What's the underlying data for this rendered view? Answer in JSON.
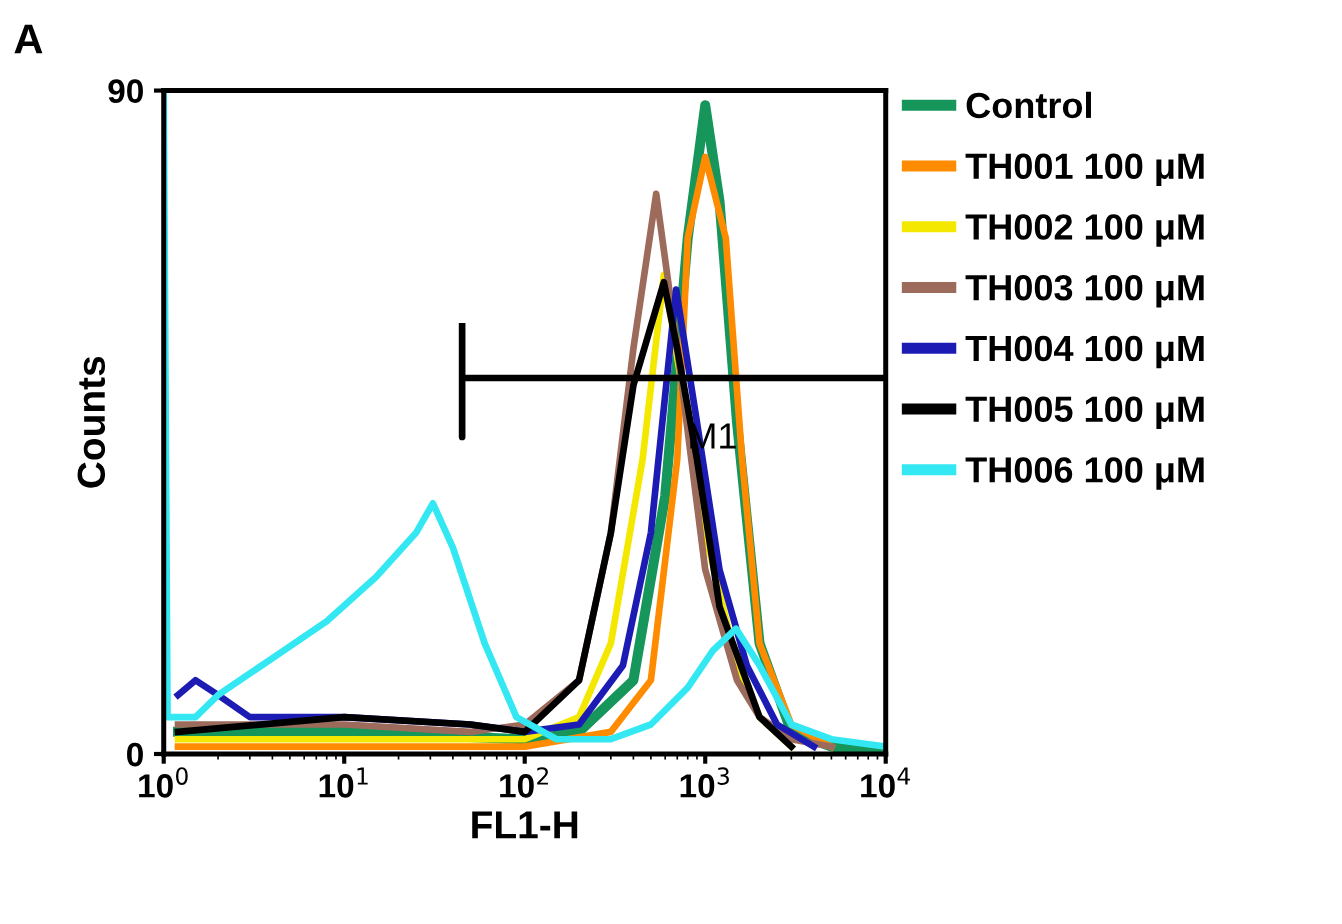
{
  "chart_data": {
    "type": "line",
    "xlabel": "FL1-H",
    "ylabel": "Counts",
    "log": "x",
    "legend": "right",
    "grid": false,
    "xlim": [
      1,
      10000
    ],
    "ylim": [
      0,
      90
    ],
    "xticks": [
      {
        "value": 1,
        "label": "10$^{0}$"
      },
      {
        "value": 10,
        "label": "10$^{1}$"
      },
      {
        "value": 100,
        "label": "10$^{2}$"
      },
      {
        "value": 1000,
        "label": "10$^{3}$"
      },
      {
        "value": 10000,
        "label": "10$^{4}$"
      }
    ],
    "yticks": [
      0,
      90
    ],
    "annotations": [
      "A",
      "M1"
    ],
    "series": [
      {
        "name": "Control",
        "color": "#16965a",
        "x": [
          1.2,
          10,
          100,
          200,
          400,
          600,
          800,
          1000,
          1200,
          1500,
          2000,
          3000,
          5000,
          10000
        ],
        "values": [
          3,
          3,
          2,
          3,
          10,
          35,
          70,
          88,
          75,
          45,
          15,
          3,
          1,
          0
        ]
      },
      {
        "name": "TH001 100 μM",
        "color": "#ff8c00",
        "x": [
          1.2,
          100,
          300,
          500,
          700,
          800,
          1000,
          1300,
          1600,
          2000,
          3000,
          5000
        ],
        "values": [
          1,
          1,
          3,
          10,
          40,
          70,
          81,
          70,
          40,
          15,
          4,
          1
        ]
      },
      {
        "name": "TH002 100 μM",
        "color": "#f5e800",
        "x": [
          1.2,
          100,
          200,
          300,
          450,
          590,
          800,
          1000,
          1500,
          2000,
          3000
        ],
        "values": [
          2,
          2,
          5,
          15,
          40,
          65,
          45,
          30,
          12,
          5,
          1
        ]
      },
      {
        "name": "TH003 100 μM",
        "color": "#9c6b5c",
        "x": [
          1.2,
          10,
          50,
          100,
          200,
          300,
          400,
          535,
          700,
          1000,
          1500,
          2000,
          3000,
          5000
        ],
        "values": [
          4,
          4,
          3,
          4,
          10,
          30,
          55,
          76,
          55,
          25,
          10,
          5,
          2,
          1
        ]
      },
      {
        "name": "TH004 100 μM",
        "color": "#1c1cb4",
        "x": [
          1.2,
          1.5,
          2,
          3,
          10,
          50,
          100,
          200,
          350,
          500,
          690,
          900,
          1200,
          1700,
          2500,
          4000
        ],
        "values": [
          8,
          10,
          8,
          5,
          5,
          4,
          3,
          4,
          12,
          30,
          63,
          45,
          25,
          12,
          4,
          1
        ]
      },
      {
        "name": "TH005 100 μM",
        "color": "#000000",
        "x": [
          1.2,
          10,
          50,
          100,
          200,
          300,
          400,
          590,
          700,
          900,
          1200,
          2000,
          3000
        ],
        "values": [
          3,
          5,
          4,
          3,
          10,
          30,
          50,
          64,
          55,
          40,
          20,
          5,
          1
        ]
      },
      {
        "name": "TH006 100 μM",
        "color": "#33e8f2",
        "x": [
          1,
          1.05,
          1.5,
          2,
          4,
          8,
          15,
          25,
          31,
          40,
          60,
          90,
          150,
          300,
          500,
          800,
          1100,
          1480,
          2000,
          3000,
          5000,
          10000
        ],
        "values": [
          90,
          5,
          5,
          8,
          13,
          18,
          24,
          30,
          34,
          28,
          15,
          5,
          2,
          2,
          4,
          9,
          14,
          17,
          12,
          4,
          2,
          1
        ]
      },
      {
        "color": "#000000",
        "x": [
          45,
          45,
          45,
          10000
        ],
        "values": [
          58,
          43,
          51,
          51
        ]
      }
    ]
  }
}
